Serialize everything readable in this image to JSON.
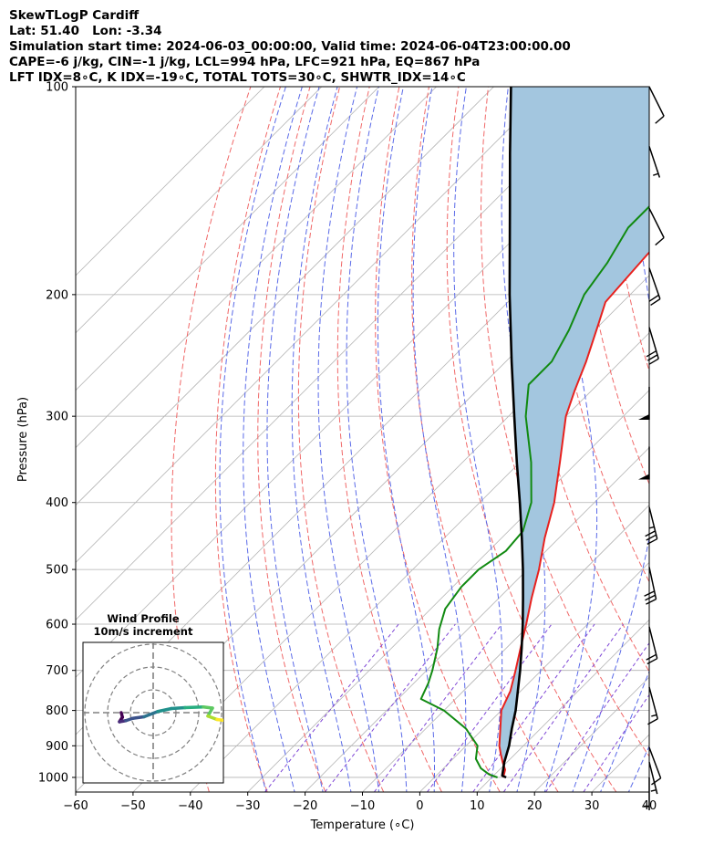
{
  "header": {
    "title": "SkewTLogP Cardiff",
    "location": "Lat: 51.40   Lon: -3.34",
    "times": "Simulation start time: 2024-06-03_00:00:00, Valid time: 2024-06-04T23:00:00.00",
    "cape_line": "CAPE=-6 j/kg, CIN=-1 j/kg, LCL=994 hPa, LFC=921 hPa, EQ=867 hPa",
    "index_line": "LFT IDX=8∘C, K IDX=-19∘C, TOTAL TOTS=30∘C, SHWTR_IDX=14∘C"
  },
  "chart_data": {
    "type": "skewt-logp",
    "xlabel": "Temperature (∘C)",
    "ylabel": "Pressure (hPa)",
    "xlim": [
      -60,
      40
    ],
    "ylim": [
      1050,
      100
    ],
    "x_ticks": [
      -60,
      -50,
      -40,
      -30,
      -20,
      -10,
      0,
      10,
      20,
      30,
      40
    ],
    "y_ticks": [
      100,
      200,
      300,
      400,
      500,
      600,
      700,
      800,
      900,
      1000
    ],
    "grid": true,
    "colors": {
      "temperature": "#e8211e",
      "dewpoint": "#118a11",
      "parcel": "#000000",
      "cape_fill": "#a3c6df",
      "dry_adiabats": "#f06868",
      "moist_adiabats": "#5a6ae8",
      "mixing_ratio": "#7f47d6",
      "isotherms": "#b4b4b4"
    },
    "temperature_profile": [
      {
        "p": 1000,
        "t": 12
      },
      {
        "p": 975,
        "t": 11
      },
      {
        "p": 950,
        "t": 9.2
      },
      {
        "p": 925,
        "t": 7.5
      },
      {
        "p": 900,
        "t": 5.8
      },
      {
        "p": 850,
        "t": 3.0
      },
      {
        "p": 800,
        "t": 0.0
      },
      {
        "p": 750,
        "t": -1.8
      },
      {
        "p": 700,
        "t": -4.5
      },
      {
        "p": 650,
        "t": -7.5
      },
      {
        "p": 600,
        "t": -10.7
      },
      {
        "p": 550,
        "t": -14.3
      },
      {
        "p": 500,
        "t": -18.0
      },
      {
        "p": 450,
        "t": -22.5
      },
      {
        "p": 400,
        "t": -27.0
      },
      {
        "p": 350,
        "t": -33.0
      },
      {
        "p": 300,
        "t": -40.0
      },
      {
        "p": 275,
        "t": -43.0
      },
      {
        "p": 250,
        "t": -46.0
      },
      {
        "p": 220,
        "t": -50.5
      },
      {
        "p": 205,
        "t": -53.0
      },
      {
        "p": 175,
        "t": -54.0
      },
      {
        "p": 150,
        "t": -54.5
      },
      {
        "p": 130,
        "t": -54.0
      },
      {
        "p": 115,
        "t": -54.5
      },
      {
        "p": 100,
        "t": -56.0
      }
    ],
    "dewpoint_profile": [
      {
        "p": 1000,
        "t": 11
      },
      {
        "p": 990,
        "t": 9
      },
      {
        "p": 970,
        "t": 6.5
      },
      {
        "p": 940,
        "t": 4.0
      },
      {
        "p": 900,
        "t": 2.0
      },
      {
        "p": 850,
        "t": -3.0
      },
      {
        "p": 800,
        "t": -10.0
      },
      {
        "p": 770,
        "t": -16.0
      },
      {
        "p": 730,
        "t": -17.5
      },
      {
        "p": 700,
        "t": -19.0
      },
      {
        "p": 650,
        "t": -22.0
      },
      {
        "p": 610,
        "t": -25.0
      },
      {
        "p": 570,
        "t": -27.5
      },
      {
        "p": 530,
        "t": -28.5
      },
      {
        "p": 500,
        "t": -28.5
      },
      {
        "p": 470,
        "t": -27.0
      },
      {
        "p": 440,
        "t": -27.5
      },
      {
        "p": 400,
        "t": -31.0
      },
      {
        "p": 350,
        "t": -38.0
      },
      {
        "p": 300,
        "t": -47.0
      },
      {
        "p": 270,
        "t": -52.0
      },
      {
        "p": 250,
        "t": -52.0
      },
      {
        "p": 225,
        "t": -54.5
      },
      {
        "p": 200,
        "t": -58.0
      },
      {
        "p": 180,
        "t": -59.5
      },
      {
        "p": 160,
        "t": -62.0
      },
      {
        "p": 140,
        "t": -62.0
      },
      {
        "p": 120,
        "t": -59.0
      },
      {
        "p": 100,
        "t": -55.0
      }
    ],
    "parcel_profile": [
      {
        "p": 1000,
        "t": 12.5
      },
      {
        "p": 994,
        "t": 11.5
      },
      {
        "p": 950,
        "t": 9.5
      },
      {
        "p": 900,
        "t": 7.5
      },
      {
        "p": 850,
        "t": 5.0
      },
      {
        "p": 800,
        "t": 2.5
      },
      {
        "p": 750,
        "t": -0.5
      },
      {
        "p": 700,
        "t": -3.7
      },
      {
        "p": 650,
        "t": -7.3
      },
      {
        "p": 600,
        "t": -11.3
      },
      {
        "p": 550,
        "t": -15.8
      },
      {
        "p": 500,
        "t": -20.8
      },
      {
        "p": 450,
        "t": -26.5
      },
      {
        "p": 400,
        "t": -33.0
      },
      {
        "p": 350,
        "t": -40.5
      },
      {
        "p": 300,
        "t": -49.0
      },
      {
        "p": 250,
        "t": -59.0
      },
      {
        "p": 200,
        "t": -71.0
      },
      {
        "p": 150,
        "t": -86.0
      },
      {
        "p": 125,
        "t": -95.5
      },
      {
        "p": 100,
        "t": -107.0
      }
    ],
    "wind_barbs": [
      {
        "p": 100,
        "u": -4,
        "v": 8
      },
      {
        "p": 122,
        "u": -2,
        "v": 6
      },
      {
        "p": 150,
        "u": -5,
        "v": 10
      },
      {
        "p": 183,
        "u": -7,
        "v": 20
      },
      {
        "p": 223,
        "u": -8,
        "v": 27
      },
      {
        "p": 272,
        "u": 0,
        "v": 50
      },
      {
        "p": 332,
        "u": 0,
        "v": 52
      },
      {
        "p": 406,
        "u": -8,
        "v": 32
      },
      {
        "p": 496,
        "u": -6,
        "v": 28
      },
      {
        "p": 605,
        "u": -5,
        "v": 20
      },
      {
        "p": 740,
        "u": -4,
        "v": 15
      },
      {
        "p": 905,
        "u": -3,
        "v": 8
      },
      {
        "p": 950,
        "u": -1,
        "v": 4
      },
      {
        "p": 1000,
        "u": 0,
        "v": 3
      }
    ],
    "inset": {
      "title": "Wind Profile",
      "subtitle": "10m/s increment",
      "rings_ms": [
        10,
        20,
        30
      ],
      "hodograph": [
        {
          "u": -14,
          "v": 0
        },
        {
          "u": -13.5,
          "v": -2
        },
        {
          "u": -14.8,
          "v": -4
        },
        {
          "u": -12,
          "v": -3.5
        },
        {
          "u": -9,
          "v": -2.5
        },
        {
          "u": -4,
          "v": -1.8
        },
        {
          "u": 2,
          "v": 0.5
        },
        {
          "u": 8,
          "v": 1.8
        },
        {
          "u": 14,
          "v": 2.2
        },
        {
          "u": 22,
          "v": 2.5
        },
        {
          "u": 26,
          "v": 2
        },
        {
          "u": 24,
          "v": -1.5
        },
        {
          "u": 28,
          "v": -3
        },
        {
          "u": 32,
          "v": -3.5
        }
      ]
    }
  }
}
